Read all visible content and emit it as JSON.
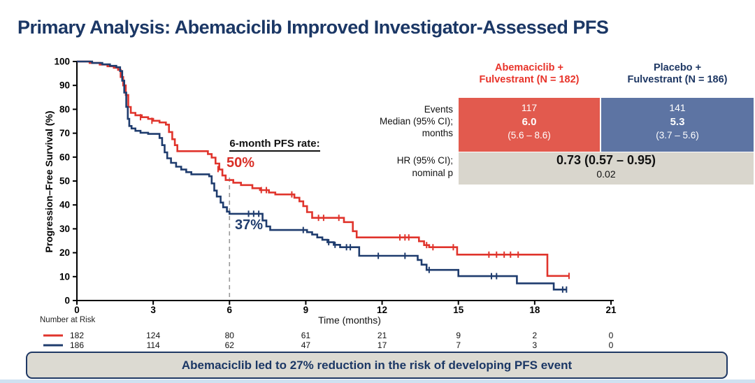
{
  "title": "Primary Analysis: Abemaciclib Improved Investigator-Assessed PFS",
  "colors": {
    "abemaciclib": "#e0342c",
    "placebo": "#1f3c6e",
    "navy_text": "#1b3765",
    "red_header": "#e8332a",
    "red_cell_bg": "#e25a4e",
    "blue_cell_bg": "#5d74a3",
    "gray_cell_bg": "#d9d6cd",
    "dashed_line": "#999999",
    "banner_bg": "#dcdad2"
  },
  "chart_data": {
    "type": "line",
    "subtype": "kaplan-meier-step",
    "xlabel": "Time (months)",
    "ylabel": "Progression–Free Survival (%)",
    "xlim": [
      0,
      21
    ],
    "ylim": [
      0,
      100
    ],
    "x_ticks": [
      0,
      3,
      6,
      9,
      12,
      15,
      18,
      21
    ],
    "y_ticks": [
      0,
      10,
      20,
      30,
      40,
      50,
      60,
      70,
      80,
      90,
      100
    ],
    "grid": false,
    "annotation": {
      "label": "6-month PFS rate",
      "colon": ":",
      "abema_rate": "50%",
      "placebo_rate": "37%",
      "dashed_x": 6
    },
    "series": [
      {
        "name": "Abemaciclib + Fulvestrant",
        "color": "#e0342c",
        "end_t": 19.35,
        "steps": [
          [
            0,
            100
          ],
          [
            0.5,
            99.4
          ],
          [
            0.9,
            98.7
          ],
          [
            1.2,
            98
          ],
          [
            1.45,
            97.4
          ],
          [
            1.62,
            96.5
          ],
          [
            1.72,
            93.5
          ],
          [
            1.82,
            90
          ],
          [
            1.92,
            86
          ],
          [
            2.02,
            81
          ],
          [
            2.12,
            78.5
          ],
          [
            2.3,
            77.5
          ],
          [
            2.55,
            76.7
          ],
          [
            2.8,
            76
          ],
          [
            3.0,
            75.2
          ],
          [
            3.25,
            74.5
          ],
          [
            3.5,
            73.6
          ],
          [
            3.62,
            70.5
          ],
          [
            3.75,
            67.5
          ],
          [
            3.85,
            65
          ],
          [
            3.95,
            62.5
          ],
          [
            5.15,
            61.3
          ],
          [
            5.3,
            59.8
          ],
          [
            5.45,
            57.3
          ],
          [
            5.6,
            54.8
          ],
          [
            5.72,
            52.3
          ],
          [
            5.85,
            50.4
          ],
          [
            6.15,
            49.3
          ],
          [
            6.45,
            48.3
          ],
          [
            6.9,
            47
          ],
          [
            7.2,
            46.2
          ],
          [
            7.55,
            45.2
          ],
          [
            7.8,
            44.4
          ],
          [
            8.55,
            43
          ],
          [
            8.75,
            41.5
          ],
          [
            8.9,
            39.5
          ],
          [
            9.05,
            37
          ],
          [
            9.25,
            34.6
          ],
          [
            10.5,
            32.8
          ],
          [
            10.85,
            29
          ],
          [
            11.0,
            26.4
          ],
          [
            13.45,
            24.8
          ],
          [
            13.65,
            23.2
          ],
          [
            13.85,
            22.3
          ],
          [
            14.95,
            19.2
          ],
          [
            18.5,
            10.3
          ]
        ],
        "censor_ticks": [
          [
            2.5,
            76.7
          ],
          [
            2.95,
            75.2
          ],
          [
            5.55,
            55
          ],
          [
            7.25,
            46.2
          ],
          [
            7.45,
            46.2
          ],
          [
            8.45,
            44.4
          ],
          [
            9.5,
            34.6
          ],
          [
            9.7,
            34.6
          ],
          [
            10.3,
            34.6
          ],
          [
            12.7,
            26.4
          ],
          [
            12.9,
            26.4
          ],
          [
            13.05,
            26.4
          ],
          [
            13.75,
            23.2
          ],
          [
            14.0,
            22.3
          ],
          [
            14.8,
            22.3
          ],
          [
            16.2,
            19.2
          ],
          [
            16.5,
            19.2
          ],
          [
            16.8,
            19.2
          ],
          [
            17.05,
            19.2
          ],
          [
            17.35,
            19.2
          ],
          [
            19.35,
            10.3
          ]
        ]
      },
      {
        "name": "Placebo + Fulvestrant",
        "color": "#1f3c6e",
        "end_t": 19.25,
        "steps": [
          [
            0,
            100
          ],
          [
            0.6,
            99.4
          ],
          [
            1.0,
            98.8
          ],
          [
            1.3,
            98.2
          ],
          [
            1.55,
            97.6
          ],
          [
            1.7,
            96
          ],
          [
            1.78,
            92
          ],
          [
            1.86,
            87
          ],
          [
            1.94,
            81
          ],
          [
            2.0,
            76
          ],
          [
            2.06,
            73
          ],
          [
            2.15,
            72
          ],
          [
            2.3,
            71
          ],
          [
            2.5,
            70.2
          ],
          [
            2.8,
            69.7
          ],
          [
            3.25,
            68
          ],
          [
            3.35,
            65
          ],
          [
            3.45,
            62
          ],
          [
            3.55,
            59.5
          ],
          [
            3.7,
            57.6
          ],
          [
            3.9,
            56
          ],
          [
            4.1,
            54.8
          ],
          [
            4.3,
            53.7
          ],
          [
            4.5,
            52.8
          ],
          [
            5.2,
            52
          ],
          [
            5.3,
            49
          ],
          [
            5.4,
            46
          ],
          [
            5.5,
            43.5
          ],
          [
            5.65,
            41
          ],
          [
            5.75,
            39
          ],
          [
            5.9,
            37.2
          ],
          [
            6.0,
            36.3
          ],
          [
            7.3,
            33.5
          ],
          [
            7.45,
            31
          ],
          [
            7.6,
            29.5
          ],
          [
            9.05,
            28.6
          ],
          [
            9.25,
            27.6
          ],
          [
            9.45,
            26.4
          ],
          [
            9.65,
            25.4
          ],
          [
            9.85,
            24.4
          ],
          [
            10.1,
            23.3
          ],
          [
            10.35,
            22.3
          ],
          [
            11.1,
            18.7
          ],
          [
            13.4,
            17
          ],
          [
            13.55,
            15
          ],
          [
            13.75,
            12.8
          ],
          [
            15.0,
            10.2
          ],
          [
            17.3,
            7.2
          ],
          [
            18.75,
            4.6
          ]
        ],
        "censor_ticks": [
          [
            6.75,
            36.3
          ],
          [
            6.95,
            36.3
          ],
          [
            7.15,
            36.3
          ],
          [
            8.9,
            29.5
          ],
          [
            9.9,
            24.4
          ],
          [
            10.15,
            23.3
          ],
          [
            10.6,
            22.3
          ],
          [
            10.75,
            22.3
          ],
          [
            11.85,
            18.7
          ],
          [
            12.9,
            18.7
          ],
          [
            13.85,
            12.8
          ],
          [
            16.3,
            10.2
          ],
          [
            16.5,
            10.2
          ],
          [
            19.1,
            4.6
          ],
          [
            19.25,
            4.6
          ]
        ]
      }
    ]
  },
  "results_table": {
    "col_headers": [
      {
        "line1": "Abemaciclib +",
        "line2": "Fulvestrant (N = 182)"
      },
      {
        "line1": "Placebo +",
        "line2": "Fulvestrant (N = 186)"
      }
    ],
    "row_labels": {
      "events": "Events",
      "median1": "Median (95% CI);",
      "median2": "months",
      "hr1": "HR (95% CI);",
      "hr2": "nominal p"
    },
    "abema": {
      "events": "117",
      "median": "6.0",
      "ci": "(5.6 – 8.6)"
    },
    "placebo": {
      "events": "141",
      "median": "5.3",
      "ci": "(3.7 – 5.6)"
    },
    "hr": "0.73 (0.57 – 0.95)",
    "p": "0.02"
  },
  "risk_table": {
    "label": "Number at Risk",
    "rows": [
      {
        "name": "abemaciclib",
        "color": "#e0342c",
        "values": [
          182,
          124,
          80,
          61,
          21,
          9,
          2,
          0
        ]
      },
      {
        "name": "placebo",
        "color": "#1f3c6e",
        "values": [
          186,
          114,
          62,
          47,
          17,
          7,
          3,
          0
        ]
      }
    ]
  },
  "banner": {
    "text": "Abemaciclib led to 27% reduction in the risk of developing PFS event"
  }
}
